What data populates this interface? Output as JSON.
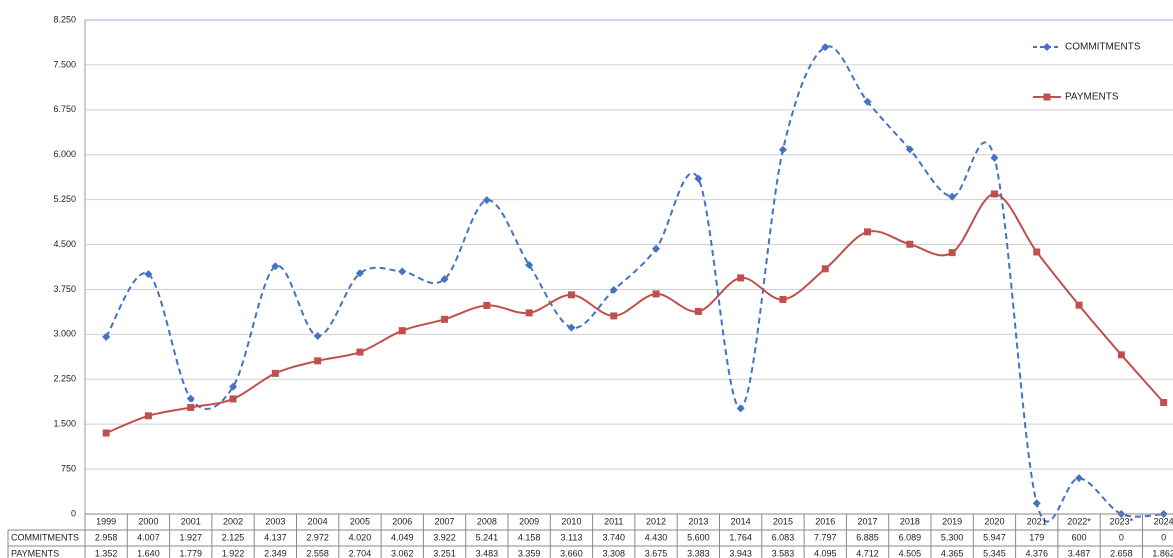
{
  "chart_data": {
    "type": "line",
    "categories": [
      "1999",
      "2000",
      "2001",
      "2002",
      "2003",
      "2004",
      "2005",
      "2006",
      "2007",
      "2008",
      "2009",
      "2010",
      "2011",
      "2012",
      "2013",
      "2014",
      "2015",
      "2016",
      "2017",
      "2018",
      "2019",
      "2020",
      "2021",
      "2022*",
      "2023*",
      "2024"
    ],
    "series": [
      {
        "name": "COMMITMENTS",
        "color": "#4472c4",
        "marker": "diamond",
        "dashed": true,
        "values": [
          2958,
          4007,
          1927,
          2125,
          4137,
          2972,
          4020,
          4049,
          3922,
          5241,
          4158,
          3113,
          3740,
          4430,
          5600,
          1764,
          6083,
          7797,
          6885,
          6089,
          5300,
          5947,
          179,
          600,
          0,
          0
        ],
        "value_labels": [
          "2.958",
          "4.007",
          "1.927",
          "2.125",
          "4.137",
          "2.972",
          "4.020",
          "4.049",
          "3.922",
          "5.241",
          "4.158",
          "3.113",
          "3.740",
          "4.430",
          "5.600",
          "1.764",
          "6.083",
          "7.797",
          "6.885",
          "6.089",
          "5.300",
          "5.947",
          "179",
          "600",
          "0",
          "0"
        ]
      },
      {
        "name": "PAYMENTS",
        "color": "#c0504d",
        "marker": "square",
        "dashed": false,
        "values": [
          1352,
          1640,
          1779,
          1922,
          2349,
          2558,
          2704,
          3062,
          3251,
          3483,
          3359,
          3660,
          3308,
          3675,
          3383,
          3943,
          3583,
          4095,
          4712,
          4505,
          4365,
          5345,
          4376,
          3487,
          2658,
          1862
        ],
        "value_labels": [
          "1.352",
          "1.640",
          "1.779",
          "1.922",
          "2.349",
          "2.558",
          "2.704",
          "3.062",
          "3.251",
          "3.483",
          "3.359",
          "3.660",
          "3.308",
          "3.675",
          "3.383",
          "3.943",
          "3.583",
          "4.095",
          "4.712",
          "4.505",
          "4.365",
          "5.345",
          "4.376",
          "3.487",
          "2.658",
          "1.862"
        ]
      }
    ],
    "ylim": [
      0,
      8250
    ],
    "yticks": [
      0,
      750,
      {
        "value": 1500,
        "label": "1.500"
      },
      {
        "value": 2250,
        "label": "2.250"
      },
      {
        "value": 3000,
        "label": "3.000"
      },
      {
        "value": 3750,
        "label": "3.750"
      },
      {
        "value": 4500,
        "label": "4.500"
      },
      {
        "value": 5250,
        "label": "5.250"
      },
      {
        "value": 6000,
        "label": "6.000"
      },
      {
        "value": 6750,
        "label": "6.750"
      },
      {
        "value": 7500,
        "label": "7.500"
      },
      {
        "value": 8250,
        "label": "8.250"
      }
    ],
    "grid": true,
    "smooth": true,
    "legend": "upper right",
    "data_table": true
  }
}
